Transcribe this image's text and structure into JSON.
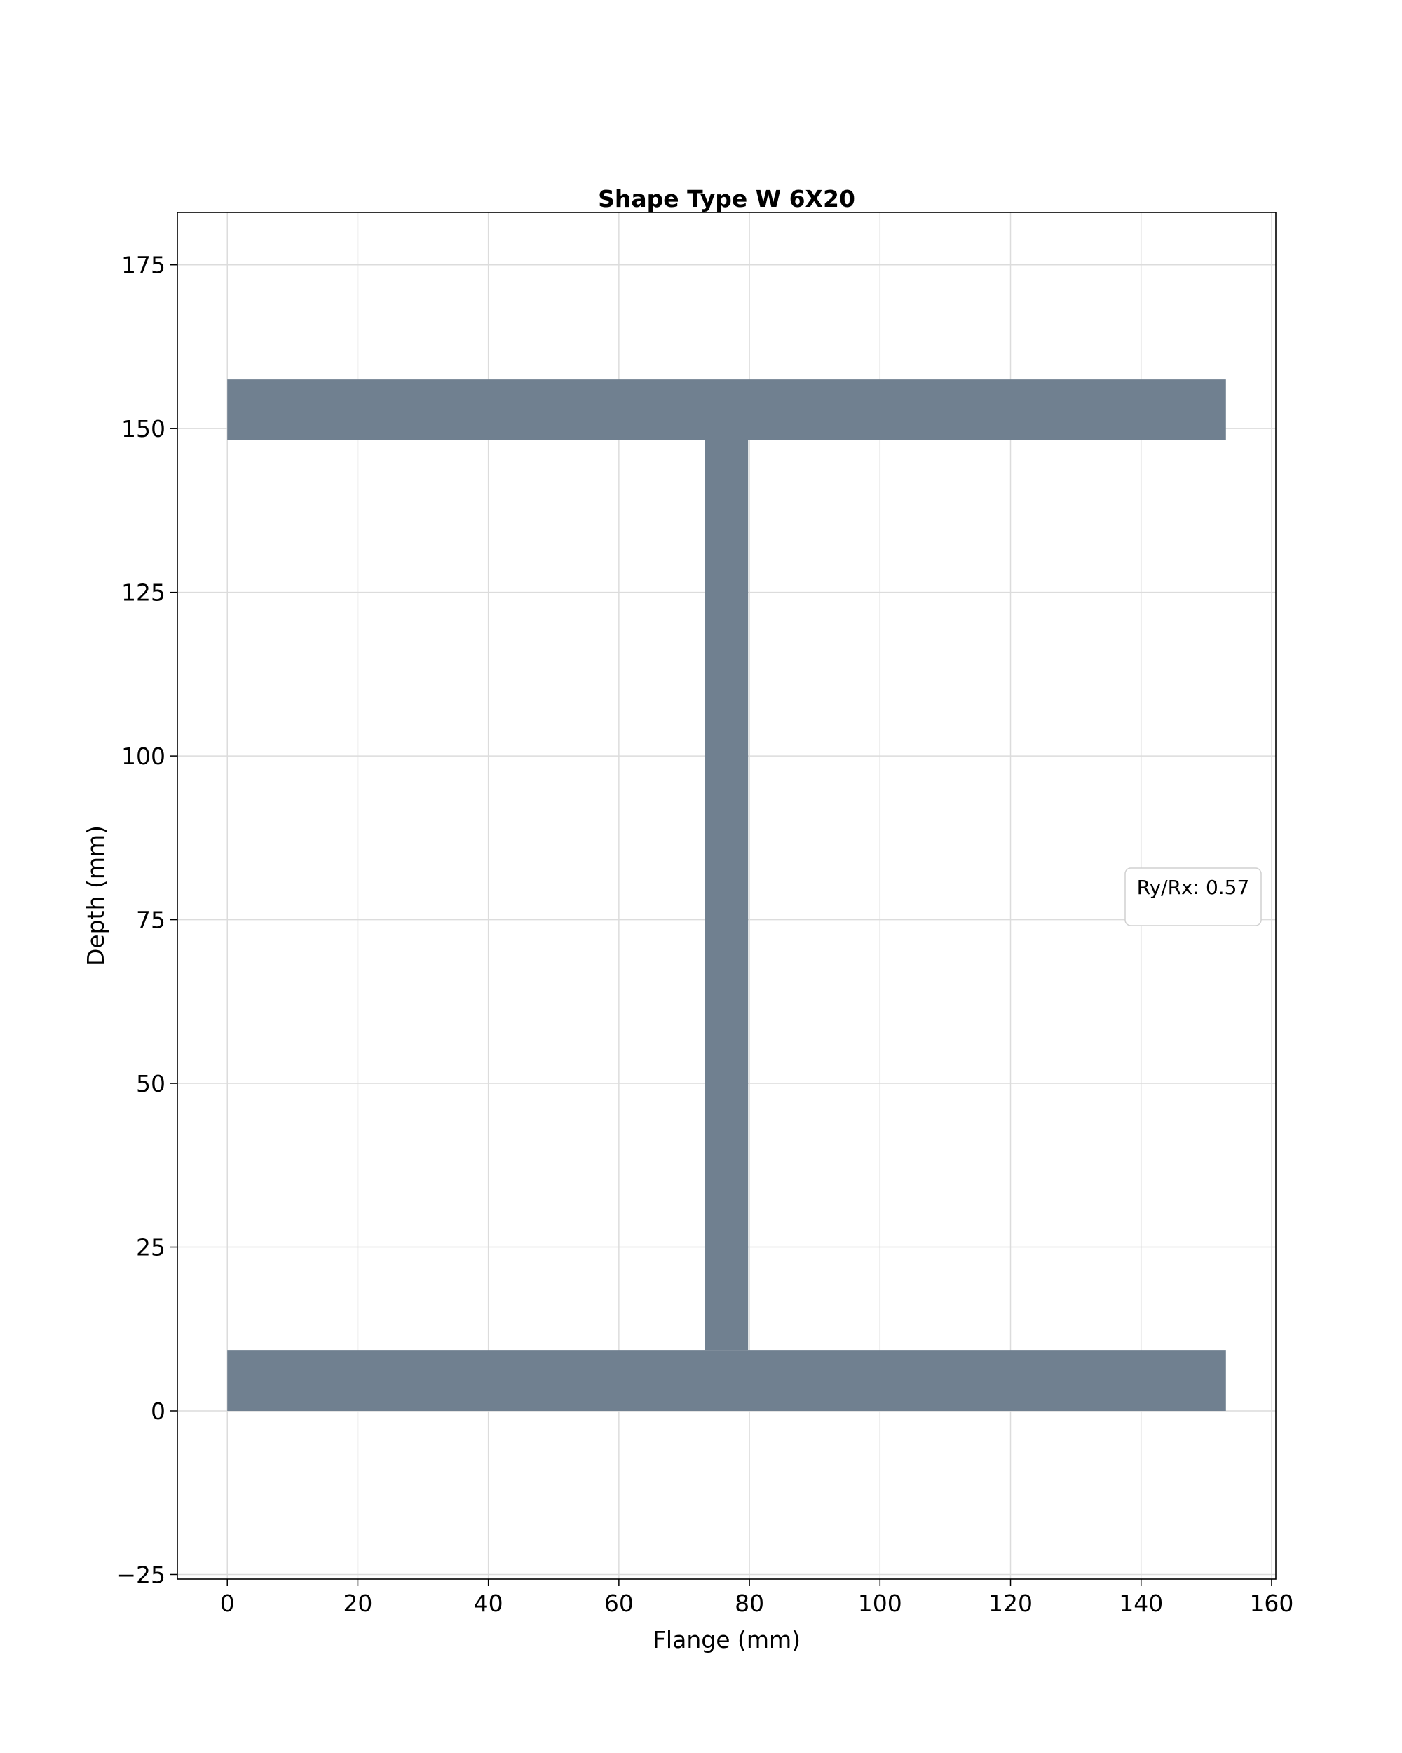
{
  "chart_data": {
    "type": "area",
    "title": "Shape Type W 6X20",
    "xlabel": "Flange (mm)",
    "ylabel": "Depth (mm)",
    "xlim": [
      -7.65,
      160.65
    ],
    "ylim": [
      -25.7,
      183
    ],
    "xticks": [
      0,
      20,
      40,
      60,
      80,
      100,
      120,
      140,
      160
    ],
    "yticks": [
      -25,
      0,
      25,
      50,
      75,
      100,
      125,
      150,
      175
    ],
    "grid": true,
    "fill_color": "#708090",
    "shape": {
      "name": "W 6X20",
      "polygons": [
        {
          "part": "bottom-flange",
          "x": [
            0,
            153,
            153,
            0
          ],
          "y": [
            0,
            0,
            9.3,
            9.3
          ]
        },
        {
          "part": "web",
          "x": [
            73.2,
            79.8,
            79.8,
            73.2
          ],
          "y": [
            9.3,
            9.3,
            148.2,
            148.2
          ]
        },
        {
          "part": "top-flange",
          "x": [
            0,
            153,
            153,
            0
          ],
          "y": [
            148.2,
            148.2,
            157.5,
            157.5
          ]
        }
      ]
    },
    "annotation": {
      "text": "Ry/Rx: 0.57",
      "placement": "center-right"
    }
  }
}
